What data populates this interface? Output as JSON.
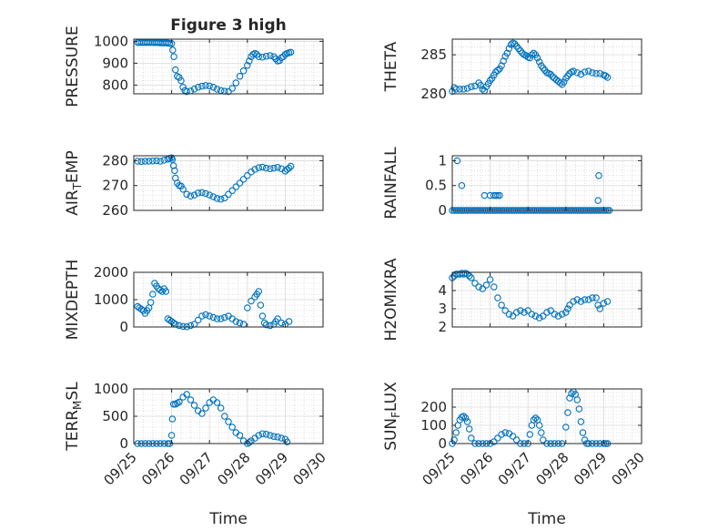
{
  "figure": {
    "marker_color": "#0072BD",
    "axes_color": "#262626",
    "grid_color": "#c8c8c8"
  },
  "chart_data": [
    {
      "type": "scatter",
      "title": "Figure 3 high",
      "ylabel": "PRESSURE",
      "xlabel": "",
      "xlim": [
        "09/25",
        "09/30"
      ],
      "ylim": [
        760,
        1010
      ],
      "yticks": [
        800,
        900,
        1000
      ],
      "grid": true,
      "x": [
        25.1,
        25.15,
        25.2,
        25.25,
        25.3,
        25.35,
        25.4,
        25.45,
        25.5,
        25.55,
        25.6,
        25.65,
        25.7,
        25.75,
        25.8,
        25.85,
        25.9,
        25.95,
        26.0,
        26.03,
        26.06,
        26.1,
        26.15,
        26.2,
        26.25,
        26.3,
        26.35,
        26.4,
        26.5,
        26.6,
        26.7,
        26.8,
        26.9,
        27.0,
        27.1,
        27.2,
        27.3,
        27.4,
        27.5,
        27.6,
        27.7,
        27.8,
        27.9,
        28.0,
        28.05,
        28.1,
        28.15,
        28.2,
        28.25,
        28.3,
        28.4,
        28.5,
        28.6,
        28.7,
        28.75,
        28.8,
        28.85,
        28.9,
        28.95,
        29.0,
        29.05,
        29.1,
        29.15
      ],
      "y": [
        995,
        995,
        995,
        995,
        995,
        995,
        995,
        995,
        995,
        994,
        994,
        994,
        993,
        993,
        993,
        993,
        992,
        991,
        990,
        960,
        930,
        870,
        840,
        835,
        820,
        790,
        775,
        770,
        773,
        782,
        790,
        795,
        798,
        796,
        790,
        781,
        775,
        772,
        770,
        785,
        810,
        840,
        865,
        890,
        910,
        930,
        940,
        945,
        940,
        930,
        928,
        932,
        935,
        930,
        920,
        910,
        912,
        925,
        930,
        940,
        945,
        948,
        950
      ],
      "xticklabels": []
    },
    {
      "type": "scatter",
      "ylabel": "THETA",
      "xlabel": "",
      "xlim": [
        "09/25",
        "09/30"
      ],
      "ylim": [
        280,
        287
      ],
      "yticks": [
        280,
        285
      ],
      "grid": true,
      "x": [
        25.0,
        25.05,
        25.1,
        25.2,
        25.3,
        25.4,
        25.5,
        25.6,
        25.7,
        25.75,
        25.8,
        25.85,
        25.9,
        25.95,
        26.0,
        26.05,
        26.1,
        26.15,
        26.2,
        26.25,
        26.3,
        26.35,
        26.4,
        26.45,
        26.5,
        26.55,
        26.6,
        26.65,
        26.7,
        26.75,
        26.8,
        26.85,
        26.9,
        26.95,
        27.0,
        27.05,
        27.1,
        27.15,
        27.2,
        27.25,
        27.3,
        27.35,
        27.4,
        27.45,
        27.5,
        27.55,
        27.6,
        27.65,
        27.7,
        27.75,
        27.8,
        27.85,
        27.9,
        27.95,
        28.0,
        28.05,
        28.1,
        28.15,
        28.2,
        28.3,
        28.4,
        28.5,
        28.6,
        28.7,
        28.8,
        28.9,
        29.0,
        29.05,
        29.1
      ],
      "y": [
        280.3,
        280.8,
        280.6,
        280.6,
        280.6,
        280.7,
        280.9,
        281.0,
        281.4,
        281.1,
        280.6,
        280.4,
        280.9,
        281.3,
        281.7,
        282.0,
        282.4,
        282.8,
        283.0,
        283.2,
        283.6,
        284.2,
        284.8,
        285.2,
        285.8,
        286.3,
        286.5,
        286.4,
        286.1,
        285.8,
        285.5,
        285.2,
        285.0,
        284.9,
        284.7,
        284.6,
        285.0,
        285.2,
        285.0,
        284.6,
        284.1,
        283.6,
        283.3,
        283.0,
        282.7,
        282.6,
        282.5,
        282.2,
        282.0,
        281.8,
        281.6,
        281.4,
        281.2,
        281.5,
        282.0,
        282.3,
        282.6,
        282.8,
        282.9,
        282.7,
        282.5,
        282.8,
        282.9,
        282.7,
        282.6,
        282.6,
        282.4,
        282.3,
        282.1
      ],
      "xticklabels": []
    },
    {
      "type": "scatter",
      "ylabel": "AIR_TEMP",
      "xlabel": "",
      "xlim": [
        "09/25",
        "09/30"
      ],
      "ylim": [
        260,
        282
      ],
      "yticks": [
        260,
        270,
        280
      ],
      "grid": true,
      "x": [
        25.1,
        25.2,
        25.3,
        25.4,
        25.5,
        25.6,
        25.7,
        25.8,
        25.9,
        25.95,
        26.0,
        26.02,
        26.05,
        26.08,
        26.1,
        26.15,
        26.2,
        26.25,
        26.3,
        26.4,
        26.5,
        26.6,
        26.7,
        26.8,
        26.9,
        27.0,
        27.1,
        27.2,
        27.3,
        27.4,
        27.5,
        27.6,
        27.7,
        27.8,
        27.9,
        28.0,
        28.1,
        28.2,
        28.3,
        28.4,
        28.5,
        28.6,
        28.7,
        28.8,
        28.9,
        29.0,
        29.05,
        29.1,
        29.15
      ],
      "y": [
        279.8,
        279.7,
        279.8,
        279.8,
        279.9,
        280.0,
        279.8,
        280.2,
        280.6,
        281.0,
        281.2,
        280.5,
        278.0,
        276.0,
        273.0,
        271.0,
        270.0,
        269.8,
        268.5,
        266.5,
        265.8,
        266.2,
        267.0,
        267.2,
        266.8,
        266.2,
        265.5,
        264.8,
        264.5,
        265.0,
        266.5,
        268.0,
        269.5,
        271.0,
        272.5,
        274.0,
        275.5,
        276.5,
        277.2,
        277.4,
        277.0,
        276.8,
        277.0,
        277.3,
        276.8,
        275.8,
        276.5,
        277.0,
        277.8
      ],
      "xticklabels": []
    },
    {
      "type": "scatter",
      "ylabel": "RAINFALL",
      "xlabel": "",
      "xlim": [
        "09/25",
        "09/30"
      ],
      "ylim": [
        0,
        1.1
      ],
      "yticks": [
        0,
        0.5,
        1
      ],
      "grid": true,
      "x": [
        25.0,
        25.05,
        25.1,
        25.15,
        25.2,
        25.25,
        25.3,
        25.35,
        25.4,
        25.45,
        25.5,
        25.55,
        25.6,
        25.65,
        25.7,
        25.75,
        25.8,
        25.85,
        25.9,
        25.95,
        26.0,
        26.05,
        26.1,
        26.15,
        26.2,
        26.25,
        26.3,
        26.35,
        26.4,
        26.45,
        26.5,
        26.55,
        26.6,
        26.65,
        26.7,
        26.75,
        26.8,
        26.85,
        26.9,
        26.95,
        27.0,
        27.05,
        27.1,
        27.15,
        27.2,
        27.25,
        27.3,
        27.35,
        27.4,
        27.45,
        27.5,
        27.55,
        27.6,
        27.65,
        27.7,
        27.75,
        27.8,
        27.85,
        27.9,
        27.95,
        28.0,
        28.05,
        28.1,
        28.15,
        28.2,
        28.25,
        28.3,
        28.35,
        28.4,
        28.45,
        28.5,
        28.55,
        28.6,
        28.65,
        28.7,
        28.75,
        28.8,
        28.85,
        28.9,
        28.95,
        29.0,
        29.05,
        29.1,
        29.15,
        25.13,
        25.25,
        25.85,
        26.0,
        26.1,
        26.15,
        26.2,
        26.25,
        28.85,
        28.87
      ],
      "y": [
        0,
        0,
        0,
        0,
        0,
        0,
        0,
        0,
        0,
        0,
        0,
        0,
        0,
        0,
        0,
        0,
        0,
        0,
        0,
        0,
        0,
        0,
        0,
        0,
        0,
        0,
        0,
        0,
        0,
        0,
        0,
        0,
        0,
        0,
        0,
        0,
        0,
        0,
        0,
        0,
        0,
        0,
        0,
        0,
        0,
        0,
        0,
        0,
        0,
        0,
        0,
        0,
        0,
        0,
        0,
        0,
        0,
        0,
        0,
        0,
        0,
        0,
        0,
        0,
        0,
        0,
        0,
        0,
        0,
        0,
        0,
        0,
        0,
        0,
        0,
        0,
        0,
        0,
        0,
        0,
        0,
        0,
        0,
        0,
        1.0,
        0.5,
        0.3,
        0.3,
        0.3,
        0.3,
        0.3,
        0.3,
        0.2,
        0.7
      ],
      "xticklabels": []
    },
    {
      "type": "scatter",
      "ylabel": "MIXDEPTH",
      "xlabel": "",
      "xlim": [
        "09/25",
        "09/30"
      ],
      "ylim": [
        0,
        2000
      ],
      "yticks": [
        0,
        1000,
        2000
      ],
      "grid": true,
      "x": [
        25.1,
        25.15,
        25.2,
        25.25,
        25.3,
        25.35,
        25.4,
        25.45,
        25.5,
        25.55,
        25.6,
        25.65,
        25.7,
        25.75,
        25.8,
        25.85,
        25.9,
        25.95,
        26.0,
        26.05,
        26.1,
        26.2,
        26.3,
        26.4,
        26.5,
        26.6,
        26.7,
        26.8,
        26.9,
        27.0,
        27.1,
        27.2,
        27.3,
        27.4,
        27.5,
        27.6,
        27.7,
        27.8,
        27.9,
        28.0,
        28.1,
        28.2,
        28.25,
        28.3,
        28.35,
        28.4,
        28.45,
        28.5,
        28.6,
        28.7,
        28.75,
        28.8,
        28.9,
        29.0,
        29.1
      ],
      "y": [
        750,
        700,
        650,
        600,
        500,
        600,
        700,
        900,
        1200,
        1600,
        1500,
        1400,
        1350,
        1300,
        1400,
        1300,
        300,
        250,
        200,
        150,
        100,
        50,
        20,
        10,
        50,
        100,
        250,
        400,
        450,
        400,
        350,
        300,
        300,
        350,
        400,
        300,
        200,
        150,
        100,
        700,
        950,
        1100,
        1200,
        1300,
        800,
        400,
        150,
        80,
        50,
        100,
        200,
        300,
        150,
        100,
        200
      ],
      "xticklabels": []
    },
    {
      "type": "scatter",
      "ylabel": "H2OMIXRA",
      "xlabel": "",
      "xlim": [
        "09/25",
        "09/30"
      ],
      "ylim": [
        2,
        5
      ],
      "yticks": [
        2,
        3,
        4
      ],
      "grid": true,
      "x": [
        25.0,
        25.05,
        25.1,
        25.15,
        25.2,
        25.25,
        25.3,
        25.35,
        25.4,
        25.45,
        25.5,
        25.6,
        25.7,
        25.8,
        25.9,
        26.0,
        26.1,
        26.2,
        26.3,
        26.4,
        26.5,
        26.6,
        26.7,
        26.8,
        26.9,
        27.0,
        27.1,
        27.2,
        27.3,
        27.4,
        27.5,
        27.6,
        27.7,
        27.8,
        27.9,
        28.0,
        28.05,
        28.1,
        28.2,
        28.3,
        28.4,
        28.5,
        28.6,
        28.7,
        28.8,
        28.85,
        28.9,
        29.0,
        29.1
      ],
      "y": [
        4.7,
        4.8,
        4.9,
        4.9,
        4.9,
        4.95,
        4.9,
        4.95,
        4.9,
        4.8,
        4.7,
        4.4,
        4.2,
        4.1,
        4.3,
        4.6,
        4.2,
        3.6,
        3.2,
        2.9,
        2.7,
        2.6,
        2.8,
        2.9,
        2.8,
        2.9,
        2.7,
        2.6,
        2.5,
        2.6,
        2.8,
        2.9,
        2.7,
        2.6,
        2.7,
        2.8,
        3.0,
        3.2,
        3.4,
        3.5,
        3.4,
        3.5,
        3.5,
        3.6,
        3.6,
        3.2,
        3.0,
        3.3,
        3.4
      ],
      "xticklabels": []
    },
    {
      "type": "scatter",
      "ylabel": "TERR_MSL",
      "xlabel": "Time",
      "xlim": [
        "09/25",
        "09/30"
      ],
      "ylim": [
        0,
        1000
      ],
      "yticks": [
        0,
        500,
        1000
      ],
      "grid": true,
      "x": [
        25.1,
        25.2,
        25.3,
        25.4,
        25.5,
        25.6,
        25.7,
        25.8,
        25.9,
        25.95,
        26.0,
        26.02,
        26.05,
        26.1,
        26.15,
        26.2,
        26.3,
        26.4,
        26.5,
        26.6,
        26.7,
        26.8,
        26.9,
        27.0,
        27.1,
        27.2,
        27.3,
        27.4,
        27.5,
        27.6,
        27.7,
        27.8,
        27.9,
        28.0,
        28.05,
        28.1,
        28.2,
        28.3,
        28.4,
        28.5,
        28.6,
        28.7,
        28.8,
        28.9,
        29.0,
        29.05
      ],
      "y": [
        0,
        0,
        0,
        0,
        0,
        0,
        0,
        0,
        0,
        0,
        150,
        450,
        720,
        720,
        740,
        760,
        850,
        900,
        800,
        700,
        600,
        550,
        650,
        750,
        800,
        750,
        650,
        500,
        400,
        300,
        200,
        150,
        50,
        0,
        20,
        50,
        100,
        150,
        180,
        170,
        150,
        130,
        120,
        100,
        80,
        30
      ],
      "xticklabels": [
        "09/25",
        "09/26",
        "09/27",
        "09/28",
        "09/29",
        "09/30"
      ]
    },
    {
      "type": "scatter",
      "ylabel": "SUN_FLUX",
      "xlabel": "Time",
      "xlim": [
        "09/25",
        "09/30"
      ],
      "ylim": [
        0,
        300
      ],
      "yticks": [
        0,
        100,
        200
      ],
      "grid": true,
      "x": [
        25.0,
        25.05,
        25.1,
        25.15,
        25.2,
        25.25,
        25.3,
        25.35,
        25.4,
        25.45,
        25.5,
        25.6,
        25.7,
        25.8,
        25.9,
        26.0,
        26.1,
        26.2,
        26.3,
        26.4,
        26.5,
        26.6,
        26.7,
        26.8,
        26.9,
        27.0,
        27.05,
        27.1,
        27.15,
        27.2,
        27.25,
        27.3,
        27.35,
        27.4,
        27.5,
        27.6,
        27.7,
        27.8,
        27.9,
        28.0,
        28.05,
        28.1,
        28.15,
        28.2,
        28.25,
        28.3,
        28.35,
        28.4,
        28.45,
        28.5,
        28.55,
        28.6,
        28.7,
        28.8,
        28.9,
        29.0,
        29.05,
        29.1
      ],
      "y": [
        0,
        20,
        60,
        100,
        130,
        145,
        150,
        140,
        120,
        80,
        30,
        0,
        0,
        0,
        0,
        0,
        10,
        30,
        50,
        60,
        55,
        40,
        20,
        0,
        0,
        0,
        50,
        100,
        130,
        140,
        130,
        100,
        60,
        20,
        0,
        0,
        0,
        0,
        0,
        90,
        170,
        250,
        275,
        285,
        270,
        240,
        190,
        120,
        60,
        20,
        0,
        0,
        0,
        0,
        0,
        0,
        0,
        0
      ],
      "xticklabels": [
        "09/25",
        "09/26",
        "09/27",
        "09/28",
        "09/29",
        "09/30"
      ]
    }
  ]
}
